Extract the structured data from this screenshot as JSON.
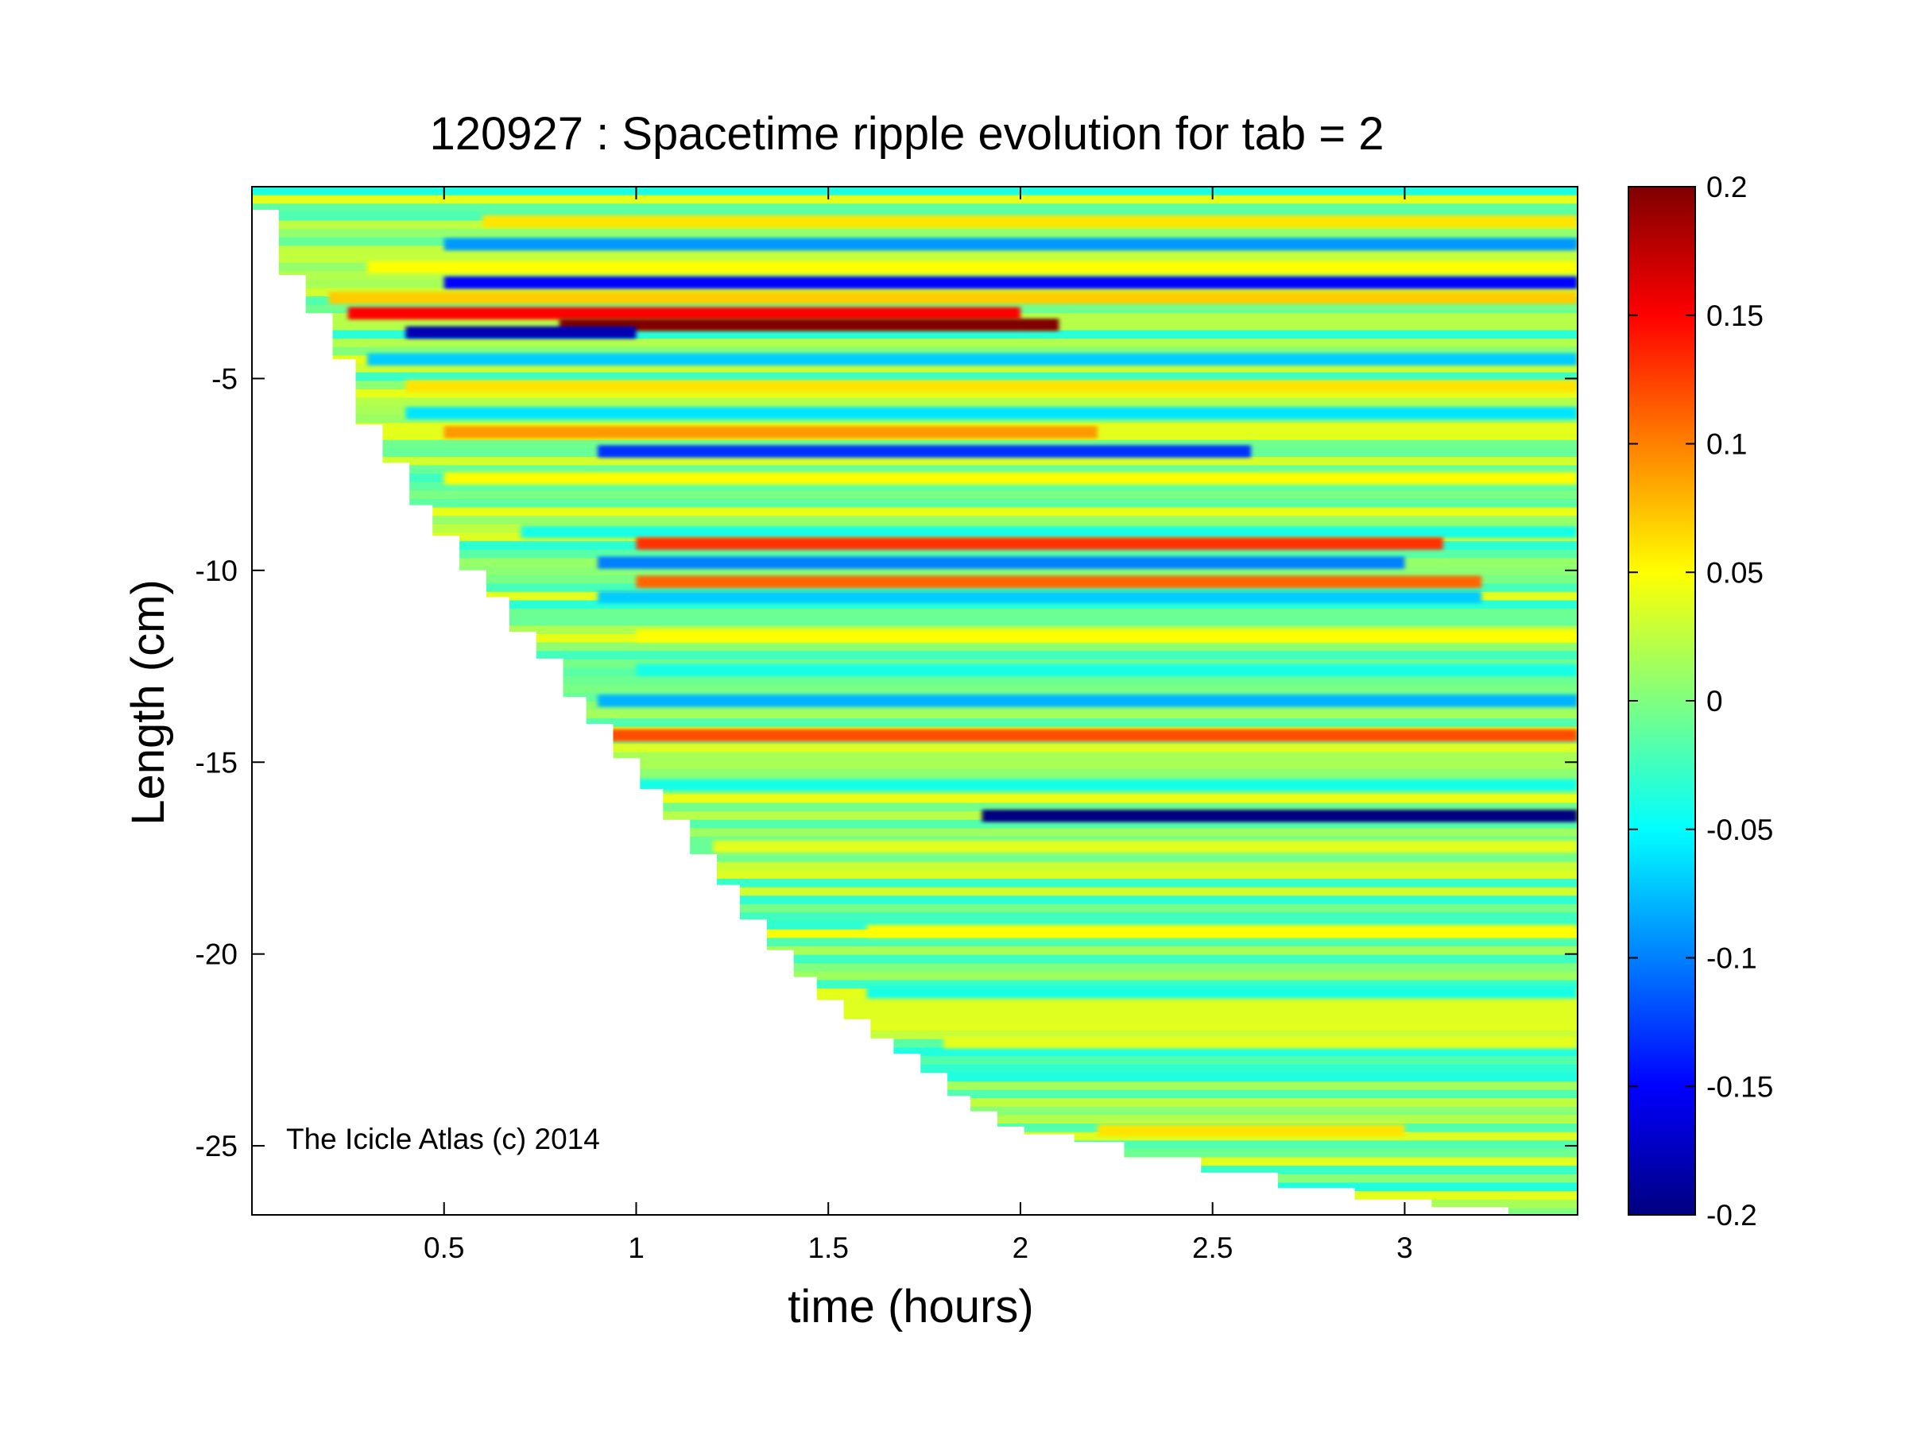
{
  "chart_data": {
    "type": "heatmap",
    "title": "120927 : Spacetime ripple evolution for tab = 2",
    "xlabel": "time (hours)",
    "ylabel": "Length (cm)",
    "annotation": "The Icicle Atlas (c) 2014",
    "xlim": [
      0.0,
      3.45
    ],
    "ylim": [
      -26.8,
      0.0
    ],
    "xticks": [
      0.5,
      1,
      1.5,
      2,
      2.5,
      3
    ],
    "xtick_labels": [
      "0.5",
      "1",
      "1.5",
      "2",
      "2.5",
      "3"
    ],
    "yticks": [
      -5,
      -10,
      -15,
      -20,
      -25
    ],
    "ytick_labels": [
      "-5",
      "-10",
      "-15",
      "-20",
      "-25"
    ],
    "colormap": "jet",
    "colorbar": {
      "clim": [
        -0.2,
        0.2
      ],
      "ticks": [
        0.2,
        0.15,
        0.1,
        0.05,
        0,
        -0.05,
        -0.1,
        -0.15,
        -0.2
      ],
      "tick_labels": [
        "0.2",
        "0.15",
        "0.1",
        "0.05",
        "0",
        "-0.05",
        "-0.1",
        "-0.15",
        "-0.2"
      ]
    },
    "grid": false,
    "boundary_time_hours": [
      0.0,
      0.07,
      0.14,
      0.21,
      0.27,
      0.34,
      0.41,
      0.47,
      0.54,
      0.61,
      0.67,
      0.74,
      0.81,
      0.87,
      0.94,
      1.01,
      1.07,
      1.14,
      1.21,
      1.27,
      1.34,
      1.41,
      1.47,
      1.54,
      1.61,
      1.67,
      1.74,
      1.81,
      1.87,
      1.94,
      2.01,
      2.14,
      2.27,
      2.47,
      2.67,
      2.87,
      3.07,
      3.27,
      3.45
    ],
    "boundary_length_cm": [
      -0.6,
      -2.3,
      -3.3,
      -4.5,
      -6.2,
      -7.2,
      -8.3,
      -9.1,
      -10.0,
      -10.7,
      -11.6,
      -12.3,
      -13.3,
      -14.0,
      -14.9,
      -15.7,
      -16.5,
      -17.4,
      -18.2,
      -19.1,
      -19.9,
      -20.6,
      -21.2,
      -21.7,
      -22.2,
      -22.6,
      -23.1,
      -23.7,
      -24.1,
      -24.5,
      -24.7,
      -24.9,
      -25.3,
      -25.7,
      -26.1,
      -26.4,
      -26.6,
      -26.8,
      -26.6
    ],
    "bands": [
      {
        "length_cm": -0.9,
        "t_start": 0.6,
        "t_end": 3.45,
        "value": 0.06
      },
      {
        "length_cm": -1.5,
        "t_start": 0.5,
        "t_end": 3.45,
        "value": -0.09
      },
      {
        "length_cm": -2.1,
        "t_start": 0.3,
        "t_end": 3.45,
        "value": 0.05
      },
      {
        "length_cm": -2.5,
        "t_start": 0.5,
        "t_end": 3.45,
        "value": -0.15
      },
      {
        "length_cm": -2.9,
        "t_start": 0.2,
        "t_end": 3.45,
        "value": 0.07
      },
      {
        "length_cm": -3.3,
        "t_start": 0.25,
        "t_end": 2.0,
        "value": 0.15
      },
      {
        "length_cm": -3.6,
        "t_start": 0.8,
        "t_end": 2.1,
        "value": 0.2
      },
      {
        "length_cm": -3.8,
        "t_start": 0.4,
        "t_end": 1.0,
        "value": -0.18
      },
      {
        "length_cm": -4.5,
        "t_start": 0.3,
        "t_end": 3.45,
        "value": -0.07
      },
      {
        "length_cm": -5.2,
        "t_start": 0.4,
        "t_end": 3.45,
        "value": 0.06
      },
      {
        "length_cm": -5.9,
        "t_start": 0.4,
        "t_end": 3.45,
        "value": -0.06
      },
      {
        "length_cm": -6.4,
        "t_start": 0.5,
        "t_end": 2.2,
        "value": 0.09
      },
      {
        "length_cm": -6.9,
        "t_start": 0.9,
        "t_end": 2.6,
        "value": -0.13
      },
      {
        "length_cm": -7.6,
        "t_start": 0.5,
        "t_end": 3.45,
        "value": 0.05
      },
      {
        "length_cm": -9.0,
        "t_start": 0.7,
        "t_end": 3.45,
        "value": -0.04
      },
      {
        "length_cm": -9.3,
        "t_start": 1.0,
        "t_end": 3.1,
        "value": 0.13
      },
      {
        "length_cm": -9.8,
        "t_start": 0.9,
        "t_end": 3.0,
        "value": -0.1
      },
      {
        "length_cm": -10.3,
        "t_start": 1.0,
        "t_end": 3.2,
        "value": 0.11
      },
      {
        "length_cm": -10.7,
        "t_start": 0.9,
        "t_end": 3.2,
        "value": -0.07
      },
      {
        "length_cm": -11.7,
        "t_start": 1.0,
        "t_end": 3.45,
        "value": 0.05
      },
      {
        "length_cm": -12.6,
        "t_start": 1.0,
        "t_end": 3.45,
        "value": -0.04
      },
      {
        "length_cm": -13.4,
        "t_start": 0.9,
        "t_end": 3.45,
        "value": -0.08
      },
      {
        "length_cm": -14.3,
        "t_start": 0.9,
        "t_end": 3.45,
        "value": 0.12
      },
      {
        "length_cm": -15.6,
        "t_start": 1.0,
        "t_end": 3.45,
        "value": -0.04
      },
      {
        "length_cm": -16.4,
        "t_start": 1.9,
        "t_end": 3.45,
        "value": -0.2
      },
      {
        "length_cm": -17.2,
        "t_start": 1.2,
        "t_end": 3.45,
        "value": 0.04
      },
      {
        "length_cm": -19.4,
        "t_start": 1.6,
        "t_end": 3.45,
        "value": 0.05
      },
      {
        "length_cm": -21.0,
        "t_start": 1.6,
        "t_end": 3.45,
        "value": -0.04
      },
      {
        "length_cm": -22.3,
        "t_start": 1.8,
        "t_end": 3.45,
        "value": 0.04
      },
      {
        "length_cm": -24.6,
        "t_start": 2.2,
        "t_end": 3.0,
        "value": 0.06
      }
    ]
  }
}
